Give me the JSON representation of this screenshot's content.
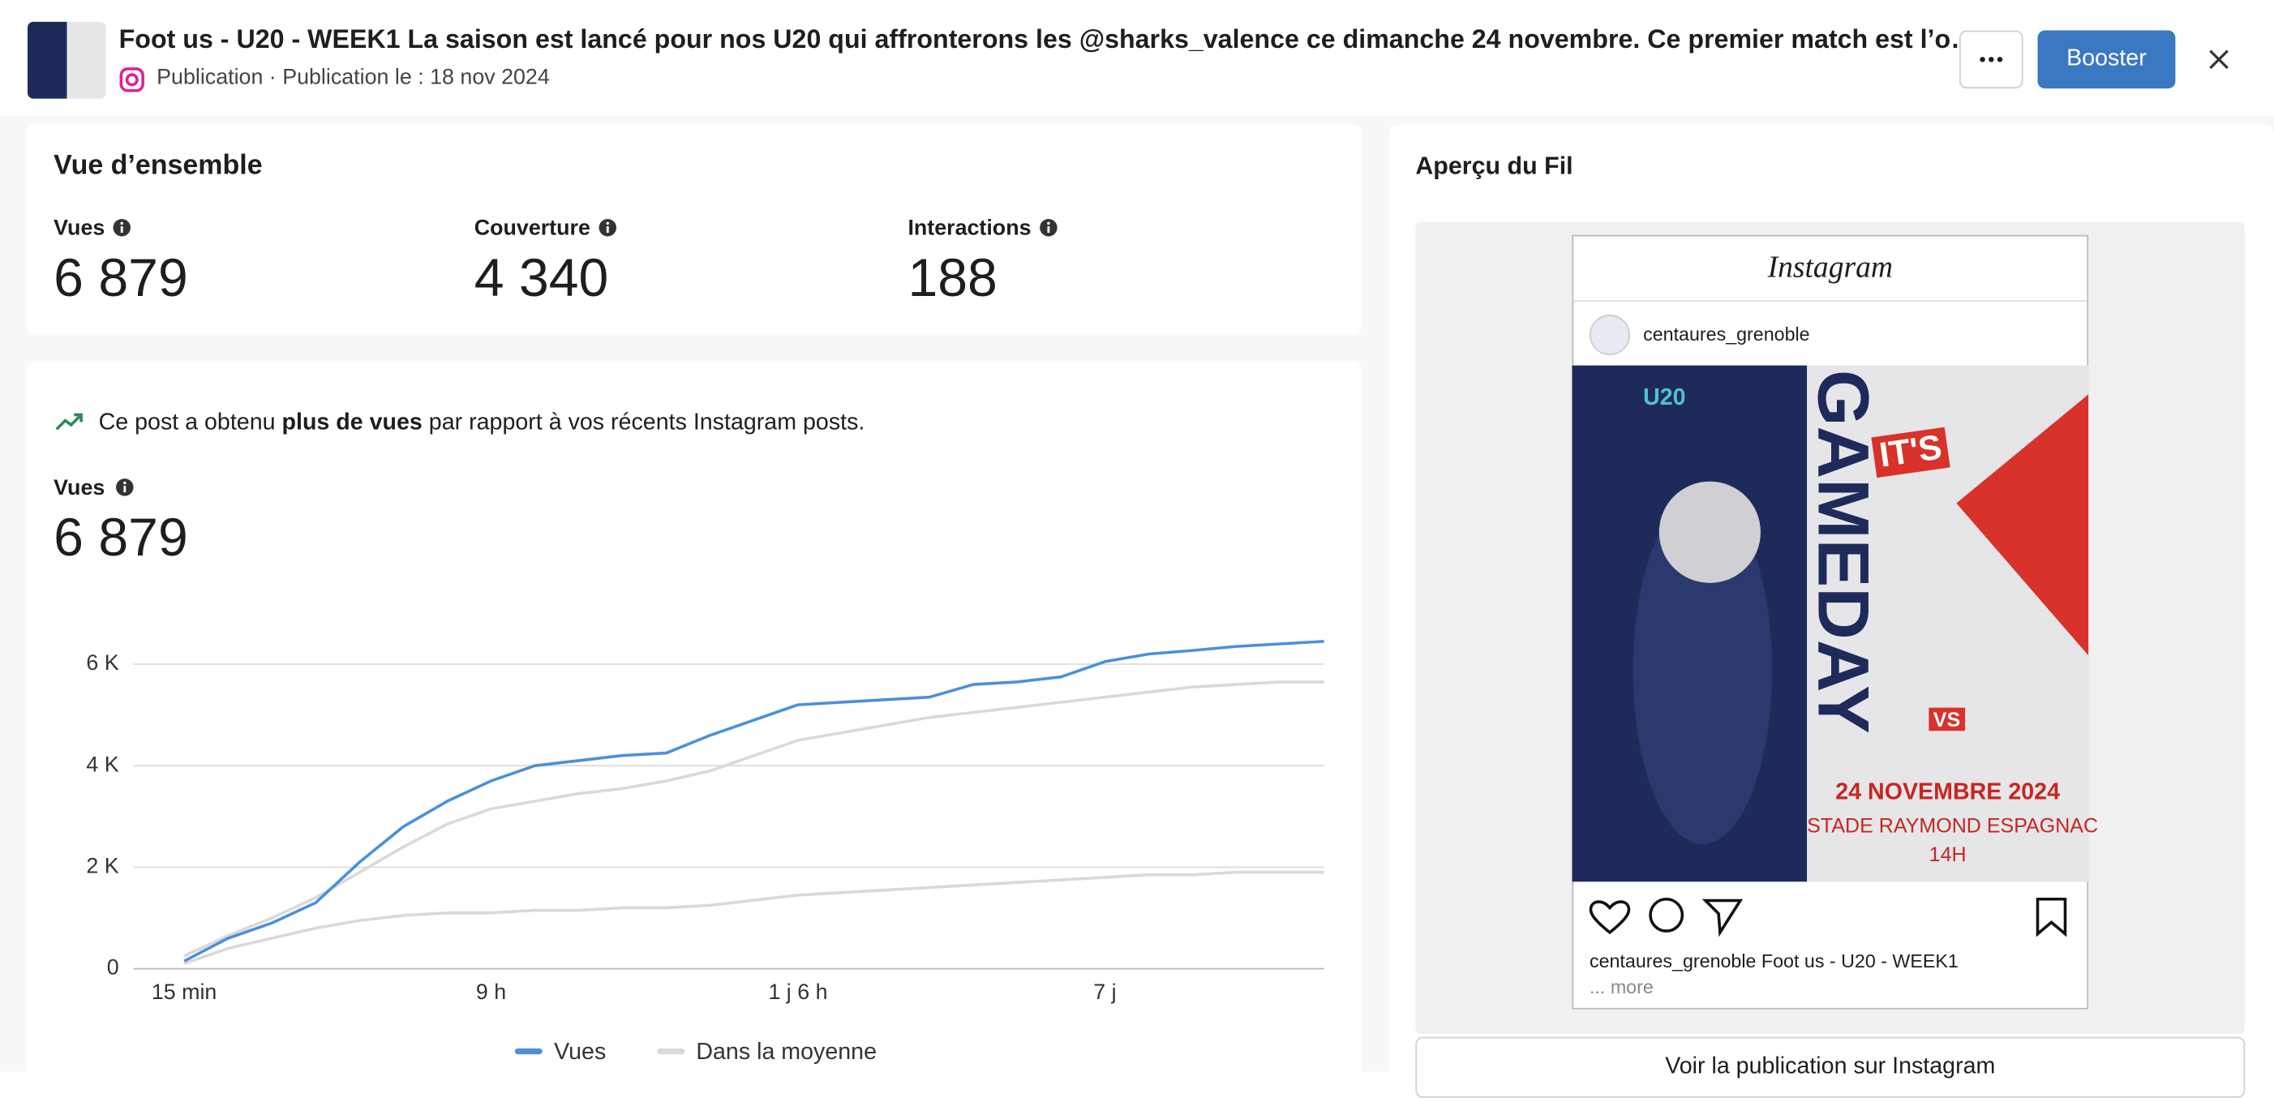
{
  "header": {
    "title": "Foot us - U20 - WEEK1 La saison est lancé pour nos U20 qui affronterons les @sharks_valence ce dimanche 24 novembre. Ce premier match est l’o…",
    "subtitle": "Publication · Publication le : 18 nov 2024",
    "boost_button": "Booster"
  },
  "overview": {
    "title": "Vue d’ensemble",
    "metrics": [
      {
        "label": "Vues",
        "value": "6 879"
      },
      {
        "label": "Couverture",
        "value": "4 340"
      },
      {
        "label": "Interactions",
        "value": "188"
      }
    ]
  },
  "insight": {
    "before": "Ce post a obtenu",
    "strong": "plus de vues",
    "after": "par rapport à vos récents Instagram posts."
  },
  "views": {
    "label": "Vues",
    "value": "6 879"
  },
  "chart_data": {
    "type": "line",
    "categories": [
      "15 min",
      null,
      null,
      null,
      null,
      null,
      null,
      "9 h",
      null,
      null,
      null,
      null,
      null,
      null,
      "1 j 6 h",
      null,
      null,
      null,
      null,
      null,
      null,
      "7 j",
      null,
      null,
      null,
      null,
      null
    ],
    "series": [
      {
        "name": "Vues",
        "color": "#4a90d9",
        "values": [
          150,
          600,
          900,
          1300,
          2100,
          2800,
          3300,
          3700,
          4000,
          4100,
          4200,
          4250,
          4600,
          4900,
          5200,
          5250,
          5300,
          5350,
          5600,
          5650,
          5750,
          6050,
          6200,
          6270,
          6350,
          6400,
          6450
        ]
      },
      {
        "name": "Dans la moyenne",
        "color": "#d9d9d9",
        "values": [
          250,
          650,
          1000,
          1400,
          1900,
          2400,
          2850,
          3150,
          3300,
          3450,
          3550,
          3700,
          3900,
          4200,
          4500,
          4650,
          4800,
          4950,
          5050,
          5150,
          5250,
          5350,
          5450,
          5550,
          5600,
          5650,
          5650
        ],
        "low": [
          100,
          400,
          600,
          800,
          950,
          1050,
          1100,
          1100,
          1150,
          1150,
          1200,
          1200,
          1250,
          1350,
          1450,
          1500,
          1550,
          1600,
          1650,
          1700,
          1750,
          1800,
          1850,
          1850,
          1900,
          1900,
          1900
        ]
      }
    ],
    "ylim": [
      0,
      6600
    ],
    "yticks": [
      0,
      {
        "value": 2000,
        "label": "2 K"
      },
      {
        "value": 4000,
        "label": "4 K"
      },
      {
        "value": 6000,
        "label": "6 K"
      }
    ],
    "grid": true,
    "legend": "bottom"
  },
  "preview": {
    "title": "Aperçu du Fil",
    "app": "Instagram",
    "username": "centaures_grenoble",
    "image": {
      "team": "U20",
      "tag": "IT'S",
      "headline": "GAMEDAY",
      "vs": "VS",
      "date": "24 NOVEMBRE 2024",
      "venue": "STADE RAYMOND ESPAGNAC",
      "time": "14H"
    },
    "caption": "centaures_grenoble Foot us - U20 - WEEK1",
    "ellipsis": "...",
    "more": "more",
    "open_button": "Voir la publication sur Instagram"
  }
}
